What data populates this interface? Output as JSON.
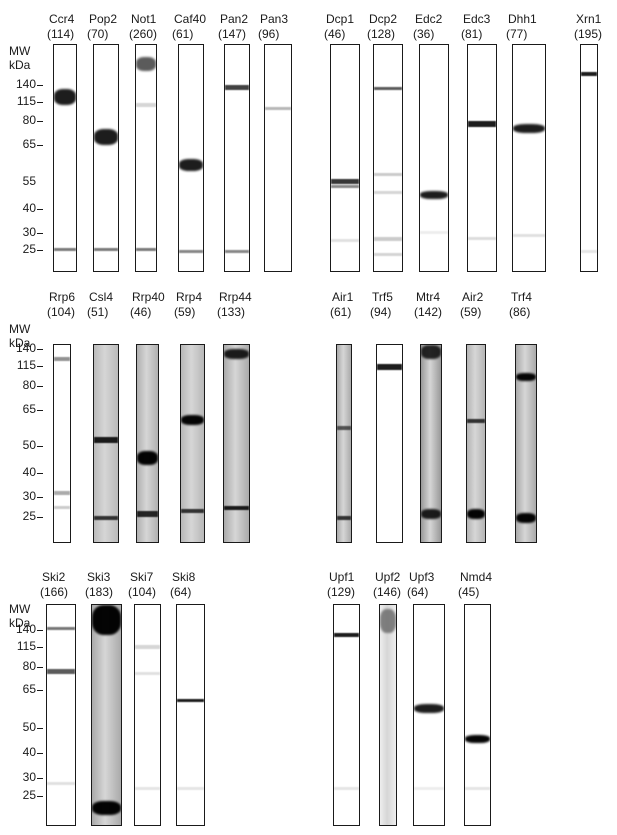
{
  "axis": {
    "mw": "MW",
    "kda": "kDa"
  },
  "panels": [
    {
      "markers": [
        "140-",
        "115-",
        "80-",
        "65-",
        "55",
        "40-",
        "30-",
        "25-"
      ],
      "lanes": [
        {
          "name": "Ccr4",
          "mw": "(114)"
        },
        {
          "name": "Pop2",
          "mw": "(70)"
        },
        {
          "name": "Not1",
          "mw": "(260)"
        },
        {
          "name": "Caf40",
          "mw": "(61)"
        },
        {
          "name": "Pan2",
          "mw": "(147)"
        },
        {
          "name": "Pan3",
          "mw": "(96)"
        },
        {
          "name": "Dcp1",
          "mw": "(46)"
        },
        {
          "name": "Dcp2",
          "mw": "(128)"
        },
        {
          "name": "Edc2",
          "mw": "(36)"
        },
        {
          "name": "Edc3",
          "mw": "(81)"
        },
        {
          "name": "Dhh1",
          "mw": "(77)"
        },
        {
          "name": "Xrn1",
          "mw": "(195)"
        }
      ]
    },
    {
      "markers": [
        "140-",
        "115-",
        "80-",
        "65-",
        "50-",
        "40-",
        "30-",
        "25-"
      ],
      "lanes": [
        {
          "name": "Rrp6",
          "mw": "(104)"
        },
        {
          "name": "Csl4",
          "mw": "(51)"
        },
        {
          "name": "Rrp40",
          "mw": "(46)"
        },
        {
          "name": "Rrp4",
          "mw": "(59)"
        },
        {
          "name": "Rrp44",
          "mw": "(133)"
        },
        {
          "name": "Air1",
          "mw": "(61)"
        },
        {
          "name": "Trf5",
          "mw": "(94)"
        },
        {
          "name": "Mtr4",
          "mw": "(142)"
        },
        {
          "name": "Air2",
          "mw": "(59)"
        },
        {
          "name": "Trf4",
          "mw": "(86)"
        }
      ]
    },
    {
      "markers": [
        "140-",
        "115-",
        "80-",
        "65-",
        "50-",
        "40-",
        "30-",
        "25-"
      ],
      "lanes": [
        {
          "name": "Ski2",
          "mw": "(166)"
        },
        {
          "name": "Ski3",
          "mw": "(183)"
        },
        {
          "name": "Ski7",
          "mw": "(104)"
        },
        {
          "name": "Ski8",
          "mw": "(64)"
        },
        {
          "name": "Upf1",
          "mw": "(129)"
        },
        {
          "name": "Upf2",
          "mw": "(146)"
        },
        {
          "name": "Upf3",
          "mw": "(64)"
        },
        {
          "name": "Nmd4",
          "mw": "(45)"
        }
      ]
    }
  ]
}
